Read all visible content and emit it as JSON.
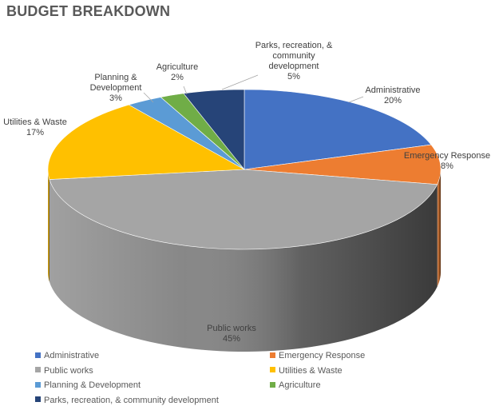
{
  "chart_data": {
    "type": "pie",
    "title": "BUDGET BREAKDOWN",
    "slices": [
      {
        "label": "Administrative",
        "value": 20,
        "value_label": "20%",
        "color": "#4472C4",
        "label_lines": [
          "Administrative",
          "20%"
        ]
      },
      {
        "label": "Emergency Response",
        "value": 8,
        "value_label": "8%",
        "color": "#ED7D31",
        "label_lines": [
          "Emergency Response",
          "8%"
        ]
      },
      {
        "label": "Public works",
        "value": 45,
        "value_label": "45%",
        "color": "#A5A5A5",
        "label_lines": [
          "Public works",
          "45%"
        ]
      },
      {
        "label": "Utilities & Waste",
        "value": 17,
        "value_label": "17%",
        "color": "#FFC000",
        "label_lines": [
          "Utilities & Waste",
          "17%"
        ]
      },
      {
        "label": "Planning & Development",
        "value": 3,
        "value_label": "3%",
        "color": "#5B9BD5",
        "label_lines": [
          "Planning &",
          "Development",
          "3%"
        ]
      },
      {
        "label": "Agriculture",
        "value": 2,
        "value_label": "2%",
        "color": "#70AD47",
        "label_lines": [
          "Agriculture",
          "2%"
        ]
      },
      {
        "label": "Parks, recreation, & community development",
        "value": 5,
        "value_label": "5%",
        "color": "#264478",
        "label_lines": [
          "Parks, recreation, &",
          "community",
          "development",
          "5%"
        ]
      }
    ],
    "legend": {
      "position": "bottom",
      "items": [
        {
          "label": "Administrative",
          "color": "#4472C4"
        },
        {
          "label": "Emergency Response",
          "color": "#ED7D31"
        },
        {
          "label": "Public works",
          "color": "#A5A5A5"
        },
        {
          "label": "Utilities & Waste",
          "color": "#FFC000"
        },
        {
          "label": "Planning & Development",
          "color": "#5B9BD5"
        },
        {
          "label": "Agriculture",
          "color": "#70AD47"
        },
        {
          "label": "Parks, recreation, & community development",
          "color": "#264478"
        }
      ]
    }
  }
}
